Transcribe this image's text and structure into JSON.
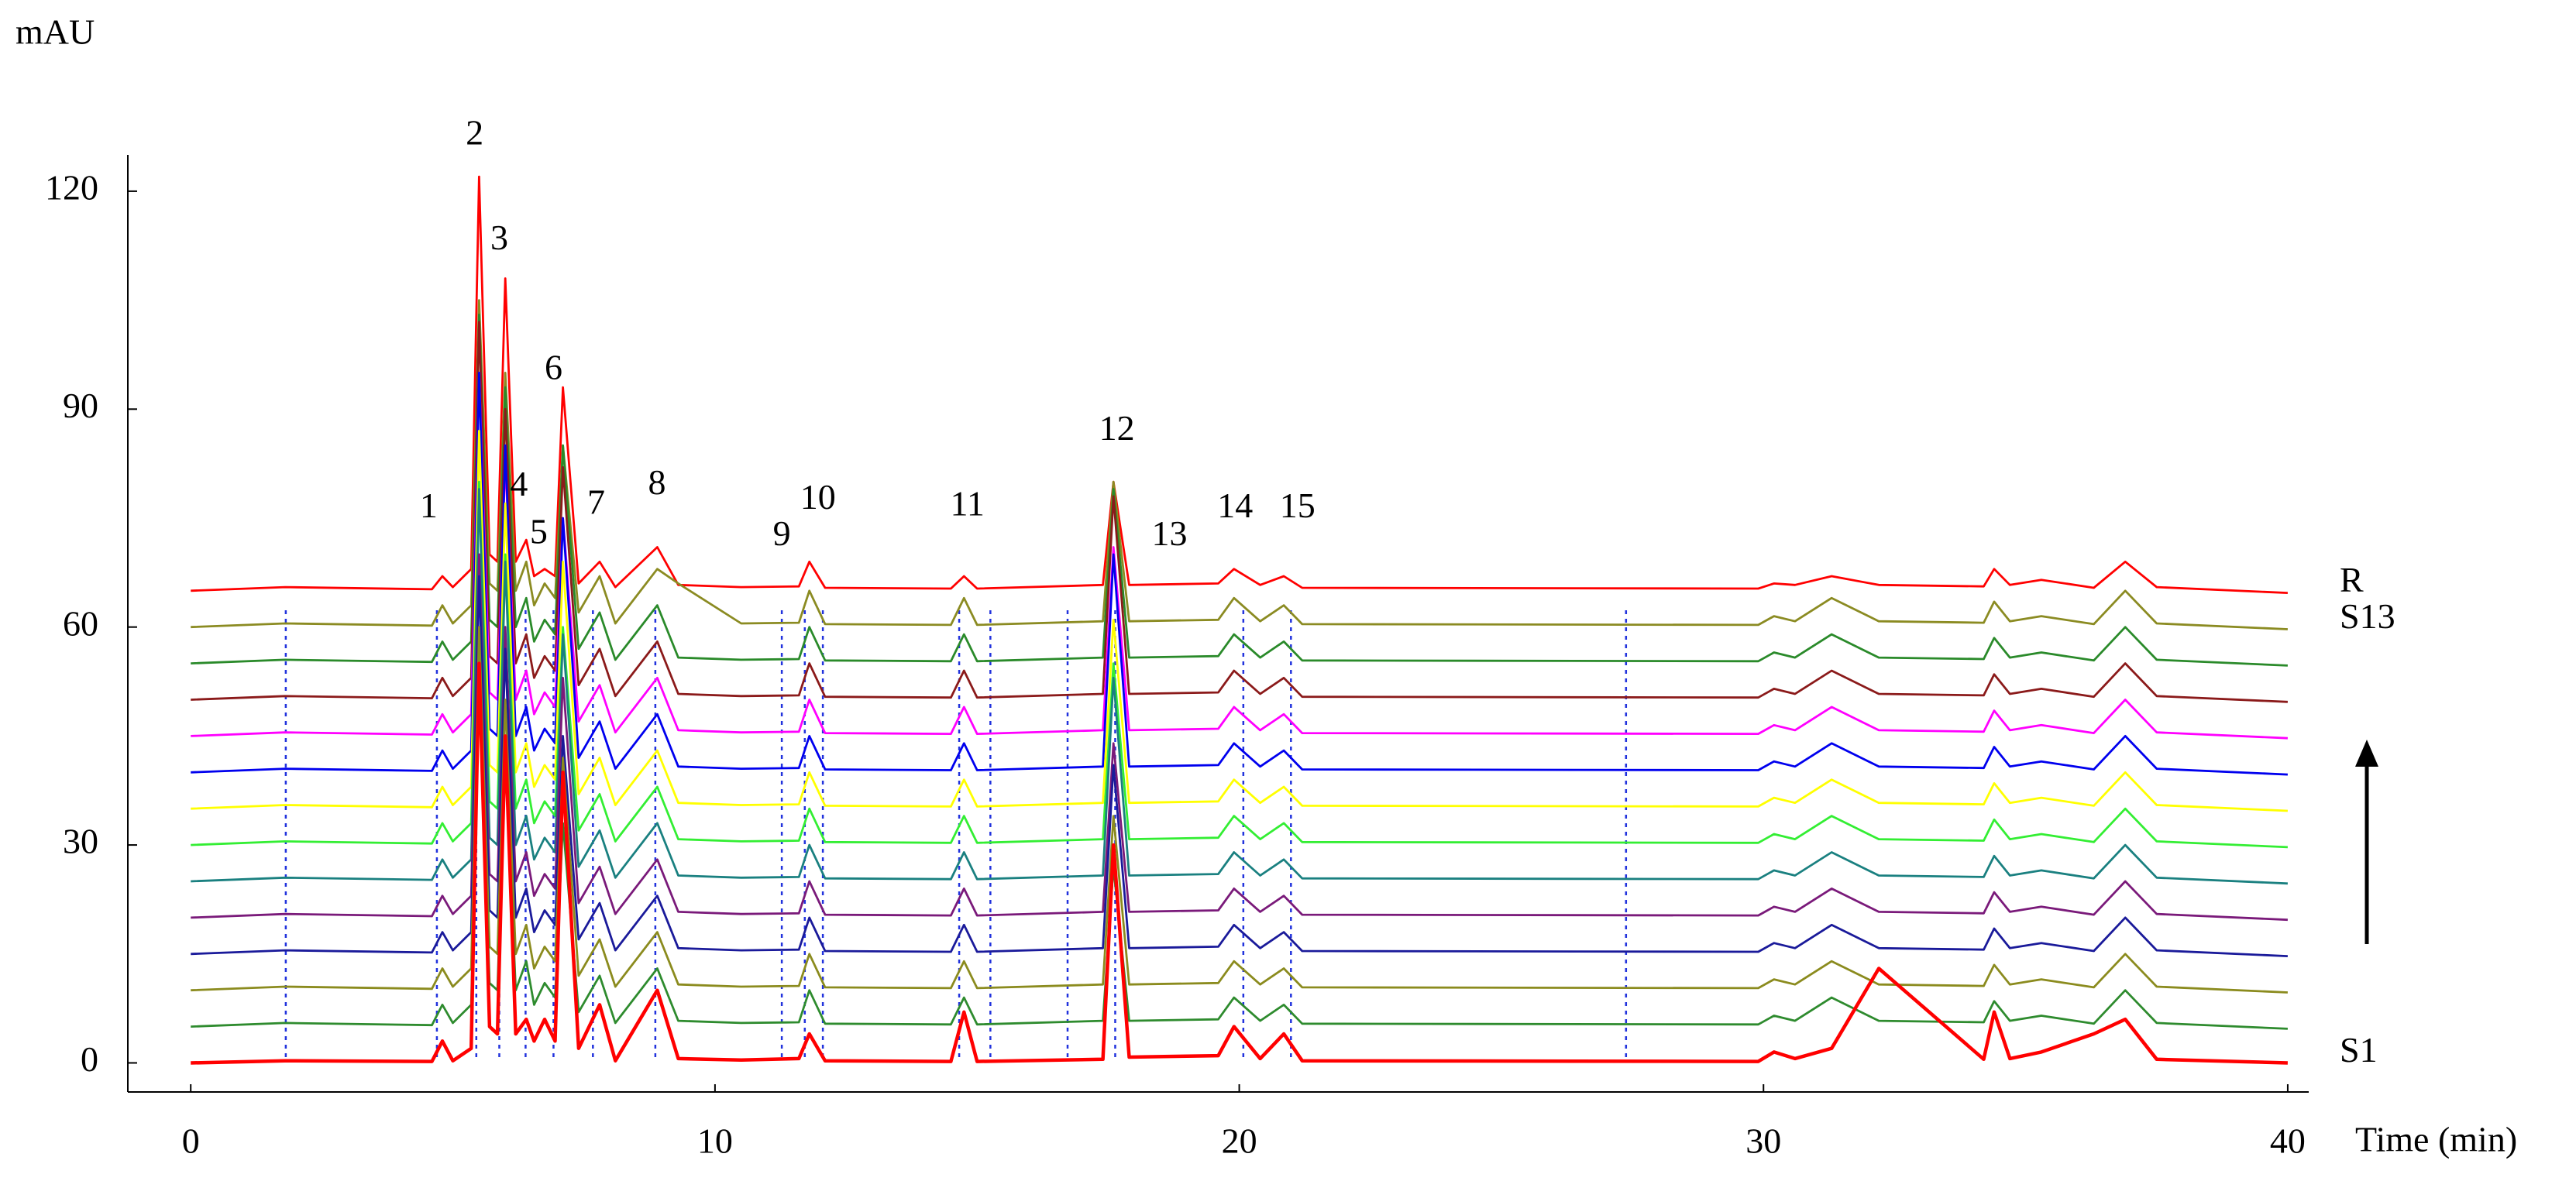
{
  "chart_data": {
    "type": "line",
    "y_label": "mAU",
    "x_label": "Time (min)",
    "annotations": [
      "1",
      "2",
      "3",
      "4",
      "5",
      "6",
      "7",
      "8",
      "9",
      "10",
      "11",
      "12",
      "13",
      "14",
      "15"
    ],
    "x": [
      0,
      1.8,
      4.6,
      4.8,
      5.0,
      5.35,
      5.5,
      5.7,
      5.85,
      6.0,
      6.2,
      6.4,
      6.55,
      6.75,
      6.95,
      7.1,
      7.4,
      7.8,
      8.1,
      8.9,
      9.3,
      10.5,
      11.6,
      11.8,
      12.1,
      14.5,
      14.75,
      15.0,
      17.4,
      17.6,
      17.9,
      19.6,
      19.9,
      20.4,
      20.85,
      21.2,
      29.9,
      30.2,
      30.6,
      31.3,
      32.2,
      34.2,
      34.4,
      34.7,
      35.3,
      36.3,
      36.9,
      37.5,
      40
    ],
    "series": [
      {
        "name": "S1",
        "color": "#ff0000",
        "values": [
          0,
          0.3,
          0.2,
          3,
          0.3,
          2,
          55,
          5,
          4,
          45,
          4,
          6,
          3,
          6,
          3,
          40,
          2,
          8,
          0.3,
          10,
          0.6,
          0.4,
          0.6,
          4,
          0.3,
          0.2,
          7,
          0.2,
          0.5,
          30,
          0.8,
          1,
          5,
          0.6,
          4,
          0.3,
          0.2,
          1.5,
          0.6,
          2,
          13,
          0.5,
          7,
          0.6,
          1.5,
          4,
          6,
          0.5,
          0
        ]
      },
      {
        "color": "#2e8b2e",
        "values": [
          5,
          5.5,
          5.2,
          8,
          5.5,
          8,
          53,
          11,
          10,
          43,
          10,
          14,
          8,
          11,
          9,
          33,
          7,
          12,
          5.5,
          13,
          5.8,
          5.5,
          5.6,
          10,
          5.4,
          5.3,
          9,
          5.3,
          5.8,
          27,
          5.8,
          6,
          9,
          5.8,
          8,
          5.4,
          5.3,
          6.5,
          5.8,
          9,
          5.8,
          5.6,
          8.5,
          5.8,
          6.5,
          5.4,
          10,
          5.5,
          4.7
        ]
      },
      {
        "color": "#8b8b1e",
        "values": [
          10,
          10.5,
          10.2,
          13,
          10.5,
          13,
          60,
          16,
          15,
          50,
          15,
          19,
          13,
          16,
          14,
          42,
          12,
          17,
          10.5,
          18,
          10.8,
          10.5,
          10.6,
          15,
          10.4,
          10.3,
          14,
          10.3,
          10.8,
          34,
          10.8,
          11,
          14,
          10.8,
          13,
          10.4,
          10.3,
          11.5,
          10.8,
          14,
          10.8,
          10.6,
          13.5,
          10.8,
          11.5,
          10.4,
          15,
          10.5,
          9.7
        ]
      },
      {
        "color": "#1a1a9a",
        "values": [
          15,
          15.5,
          15.2,
          18,
          15.5,
          18,
          67,
          21,
          20,
          57,
          20,
          24,
          18,
          21,
          19,
          45,
          17,
          22,
          15.5,
          23,
          15.8,
          15.5,
          15.6,
          20,
          15.4,
          15.3,
          19,
          15.3,
          15.8,
          41,
          15.8,
          16,
          19,
          15.8,
          18,
          15.4,
          15.3,
          16.5,
          15.8,
          19,
          15.8,
          15.6,
          18.5,
          15.8,
          16.5,
          15.4,
          20,
          15.5,
          14.7
        ]
      },
      {
        "color": "#7a1a7a",
        "values": [
          20,
          20.5,
          20.2,
          23,
          20.5,
          23,
          70,
          26,
          25,
          60,
          25,
          29,
          23,
          26,
          24,
          53,
          22,
          27,
          20.5,
          28,
          20.8,
          20.5,
          20.6,
          25,
          20.4,
          20.3,
          24,
          20.3,
          20.8,
          44,
          20.8,
          21,
          24,
          20.8,
          23,
          20.4,
          20.3,
          21.5,
          20.8,
          24,
          20.8,
          20.6,
          23.5,
          20.8,
          21.5,
          20.4,
          25,
          20.5,
          19.7
        ]
      },
      {
        "color": "#1a8080",
        "values": [
          25,
          25.5,
          25.2,
          28,
          25.5,
          28,
          79,
          31,
          30,
          69,
          30,
          34,
          28,
          31,
          29,
          59,
          27,
          32,
          25.5,
          33,
          25.8,
          25.5,
          25.6,
          30,
          25.4,
          25.3,
          29,
          25.3,
          25.8,
          53,
          25.8,
          26,
          29,
          25.8,
          28,
          25.4,
          25.3,
          26.5,
          25.8,
          29,
          25.8,
          25.6,
          28.5,
          25.8,
          26.5,
          25.4,
          30,
          25.5,
          24.7
        ]
      },
      {
        "color": "#33ee33",
        "values": [
          30,
          30.5,
          30.2,
          33,
          30.5,
          33,
          80,
          36,
          35,
          70,
          35,
          39,
          33,
          36,
          34,
          60,
          32,
          37,
          30.5,
          38,
          30.8,
          30.5,
          30.6,
          35,
          30.4,
          30.3,
          34,
          30.3,
          30.8,
          55,
          30.8,
          31,
          34,
          30.8,
          33,
          30.4,
          30.3,
          31.5,
          30.8,
          34,
          30.8,
          30.6,
          33.5,
          30.8,
          31.5,
          30.4,
          35,
          30.5,
          29.7
        ]
      },
      {
        "color": "#ffff00",
        "values": [
          35,
          35.5,
          35.2,
          38,
          35.5,
          38,
          87,
          41,
          40,
          77,
          40,
          44,
          38,
          41,
          39,
          69,
          37,
          42,
          35.5,
          43,
          35.8,
          35.5,
          35.6,
          40,
          35.4,
          35.3,
          39,
          35.3,
          35.8,
          61,
          35.8,
          36,
          39,
          35.8,
          38,
          35.4,
          35.3,
          36.5,
          35.8,
          39,
          35.8,
          35.6,
          38.5,
          35.8,
          36.5,
          35.4,
          40,
          35.5,
          34.7
        ]
      },
      {
        "color": "#0000ee",
        "values": [
          40,
          40.5,
          40.2,
          43,
          40.5,
          43,
          95,
          46,
          45,
          85,
          45,
          49,
          43,
          46,
          44,
          75,
          42,
          47,
          40.5,
          48,
          40.8,
          40.5,
          40.6,
          45,
          40.4,
          40.3,
          44,
          40.3,
          40.8,
          70,
          40.8,
          41,
          44,
          40.8,
          43,
          40.4,
          40.3,
          41.5,
          40.8,
          44,
          40.8,
          40.6,
          43.5,
          40.8,
          41.5,
          40.4,
          45,
          40.5,
          39.7
        ]
      },
      {
        "color": "#ff00ff",
        "values": [
          45,
          45.5,
          45.2,
          48,
          45.5,
          48,
          95,
          51,
          50,
          83,
          50,
          54,
          48,
          51,
          49,
          75,
          47,
          52,
          45.5,
          53,
          45.8,
          45.5,
          45.6,
          50,
          45.4,
          45.3,
          49,
          45.3,
          45.8,
          71,
          45.8,
          46,
          49,
          45.8,
          48,
          45.4,
          45.3,
          46.5,
          45.8,
          49,
          45.8,
          45.6,
          48.5,
          45.8,
          46.5,
          45.4,
          50,
          45.5,
          44.7
        ]
      },
      {
        "color": "#8b1a1a",
        "values": [
          50,
          50.5,
          50.2,
          53,
          50.5,
          53,
          102,
          56,
          55,
          90,
          55,
          59,
          53,
          56,
          54,
          82,
          52,
          57,
          50.5,
          58,
          50.8,
          50.5,
          50.6,
          55,
          50.4,
          50.3,
          54,
          50.3,
          50.8,
          78,
          50.8,
          51,
          54,
          50.8,
          53,
          50.4,
          50.3,
          51.5,
          50.8,
          54,
          50.8,
          50.6,
          53.5,
          50.8,
          51.5,
          50.4,
          55,
          50.5,
          49.7
        ]
      },
      {
        "color": "#2a8a2a",
        "values": [
          55,
          55.5,
          55.2,
          58,
          55.5,
          58,
          103,
          61,
          60,
          93,
          60,
          64,
          58,
          61,
          59,
          85,
          57,
          62,
          55.5,
          63,
          55.8,
          55.5,
          55.6,
          60,
          55.4,
          55.3,
          59,
          55.3,
          55.8,
          79,
          55.8,
          56,
          59,
          55.8,
          58,
          55.4,
          55.3,
          56.5,
          55.8,
          59,
          55.8,
          55.6,
          58.5,
          55.8,
          56.5,
          55.4,
          60,
          55.5,
          54.7
        ]
      },
      {
        "name": "S13",
        "color": "#8b8b22",
        "values": [
          60,
          60.5,
          60.2,
          63,
          60.5,
          63,
          105,
          66,
          65,
          95,
          65,
          69,
          63,
          66,
          64,
          85,
          62,
          67,
          60.5,
          68,
          66,
          60.5,
          60.6,
          65,
          60.4,
          60.3,
          64,
          60.3,
          60.8,
          80,
          60.8,
          61,
          64,
          60.8,
          63,
          60.4,
          60.3,
          61.5,
          60.8,
          64,
          60.8,
          60.6,
          63.5,
          60.8,
          61.5,
          60.4,
          65,
          60.5,
          59.7
        ]
      },
      {
        "name": "R",
        "color": "#ff0000",
        "values": [
          65,
          65.5,
          65.2,
          67,
          65.5,
          68,
          122,
          70,
          69,
          108,
          69,
          72,
          67,
          68,
          67,
          93,
          66,
          69,
          65.5,
          71,
          65.8,
          65.5,
          65.6,
          69,
          65.4,
          65.3,
          67,
          65.3,
          65.8,
          80,
          65.8,
          66,
          68,
          65.8,
          67,
          65.4,
          65.3,
          66,
          65.8,
          67,
          65.8,
          65.6,
          68,
          65.8,
          66.5,
          65.4,
          69,
          65.5,
          64.7
        ]
      }
    ],
    "xlim": [
      -1.2,
      40.4
    ],
    "xticks": [
      0,
      10,
      20,
      30,
      40
    ],
    "ylim": [
      -4,
      125
    ],
    "yticks": [
      0,
      30,
      60,
      90,
      120
    ]
  }
}
